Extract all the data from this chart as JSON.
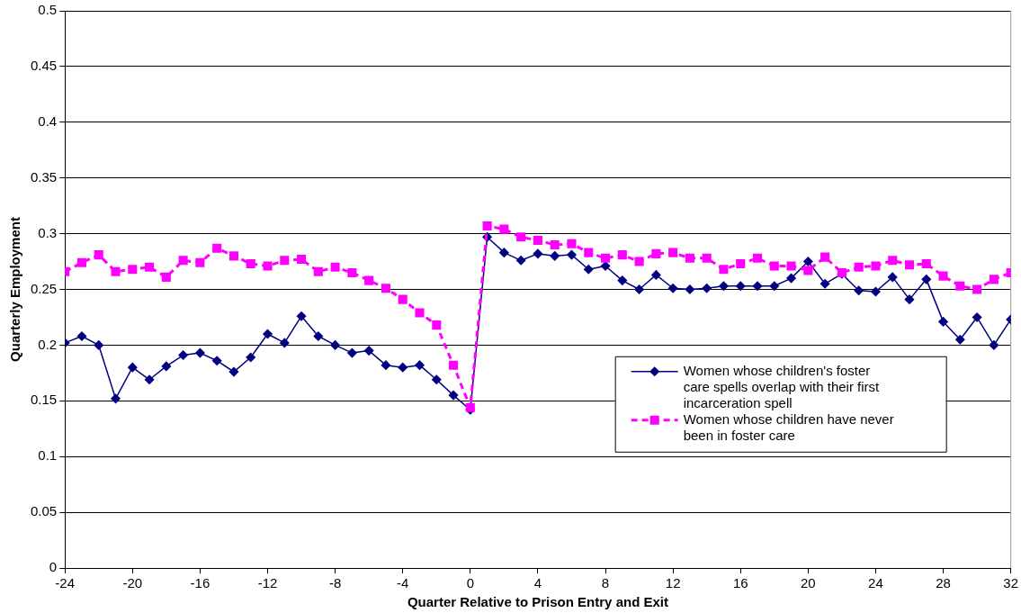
{
  "chart_data": {
    "type": "line",
    "xlabel": "Quarter Relative to Prison Entry and Exit",
    "ylabel": "Quarterly Employment",
    "x": [
      -24,
      -23,
      -22,
      -21,
      -20,
      -19,
      -18,
      -17,
      -16,
      -15,
      -14,
      -13,
      -12,
      -11,
      -10,
      -9,
      -8,
      -7,
      -6,
      -5,
      -4,
      -3,
      -2,
      -1,
      0,
      1,
      2,
      3,
      4,
      5,
      6,
      7,
      8,
      9,
      10,
      11,
      12,
      13,
      14,
      15,
      16,
      17,
      18,
      19,
      20,
      21,
      22,
      23,
      24,
      25,
      26,
      27,
      28,
      29,
      30,
      31,
      32
    ],
    "series": [
      {
        "name": "Women whose children's foster care spells overlap with their first incarceration spell",
        "color": "#000080",
        "marker": "diamond",
        "line_style": "solid",
        "values": [
          0.202,
          0.208,
          0.2,
          0.152,
          0.18,
          0.169,
          0.181,
          0.191,
          0.193,
          0.186,
          0.176,
          0.189,
          0.21,
          0.202,
          0.226,
          0.208,
          0.2,
          0.193,
          0.195,
          0.182,
          0.18,
          0.182,
          0.169,
          0.155,
          0.142,
          0.297,
          0.283,
          0.276,
          0.282,
          0.28,
          0.281,
          0.268,
          0.271,
          0.258,
          0.25,
          0.263,
          0.251,
          0.25,
          0.251,
          0.253,
          0.253,
          0.253,
          0.253,
          0.26,
          0.275,
          0.255,
          0.264,
          0.249,
          0.248,
          0.261,
          0.241,
          0.259,
          0.221,
          0.205,
          0.225,
          0.2,
          0.223
        ]
      },
      {
        "name": "Women whose children have never been in foster care",
        "color": "#ff00ff",
        "marker": "square",
        "line_style": "dashed",
        "values": [
          0.266,
          0.274,
          0.281,
          0.266,
          0.268,
          0.27,
          0.261,
          0.276,
          0.274,
          0.287,
          0.28,
          0.273,
          0.271,
          0.276,
          0.277,
          0.266,
          0.27,
          0.265,
          0.258,
          0.251,
          0.241,
          0.229,
          0.218,
          0.182,
          0.144,
          0.307,
          0.304,
          0.297,
          0.294,
          0.29,
          0.291,
          0.283,
          0.278,
          0.281,
          0.275,
          0.282,
          0.283,
          0.278,
          0.278,
          0.268,
          0.273,
          0.278,
          0.271,
          0.271,
          0.267,
          0.279,
          0.265,
          0.27,
          0.271,
          0.276,
          0.272,
          0.273,
          0.262,
          0.253,
          0.25,
          0.259,
          0.265
        ]
      }
    ],
    "xlim": [
      -24,
      32
    ],
    "xticks": [
      -24,
      -20,
      -16,
      -12,
      -8,
      -4,
      0,
      4,
      8,
      12,
      16,
      20,
      24,
      28,
      32
    ],
    "ylim": [
      0,
      0.5
    ],
    "yticks": [
      0,
      0.05,
      0.1,
      0.15,
      0.2,
      0.25,
      0.3,
      0.35,
      0.4,
      0.45,
      0.5
    ],
    "grid": "y",
    "legend": "right"
  }
}
